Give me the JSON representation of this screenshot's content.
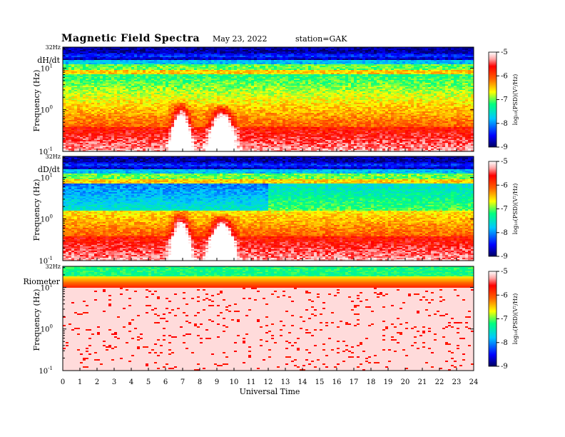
{
  "header": {
    "title": "Magnetic  Field  Spectra",
    "date": "May 23, 2022",
    "station": "station=GAK"
  },
  "chart_data": {
    "type": "heatmap",
    "xlabel": "Universal Time",
    "x_ticks": [
      "0",
      "1",
      "2",
      "3",
      "4",
      "5",
      "6",
      "7",
      "8",
      "9",
      "10",
      "11",
      "12",
      "13",
      "14",
      "15",
      "16",
      "17",
      "18",
      "19",
      "20",
      "21",
      "22",
      "23",
      "24"
    ],
    "xlim": [
      0,
      24
    ],
    "ylabel": "Frequency  (Hz)",
    "y_scale": "log",
    "ylim": [
      0.1,
      32
    ],
    "y_top_label": "32Hz",
    "y_ticks": [
      {
        "base": "10",
        "exp": "-1"
      },
      {
        "base": "10",
        "exp": "0"
      },
      {
        "base": "10",
        "exp": "1"
      }
    ],
    "colorbar": {
      "label": "log₁₀(PSD)(V²/Hz)",
      "ticks": [
        "-5",
        "-6",
        "-7",
        "-8",
        "-9"
      ],
      "range": [
        -9,
        -5
      ],
      "colors": [
        "#000080",
        "#0000ff",
        "#00c8ff",
        "#00ff80",
        "#ffff00",
        "#ff8000",
        "#ff0000",
        "#ffffff"
      ]
    },
    "panels": [
      {
        "name": "dH/dt"
      },
      {
        "name": "dD/dt"
      },
      {
        "name": "Riometer"
      }
    ]
  }
}
